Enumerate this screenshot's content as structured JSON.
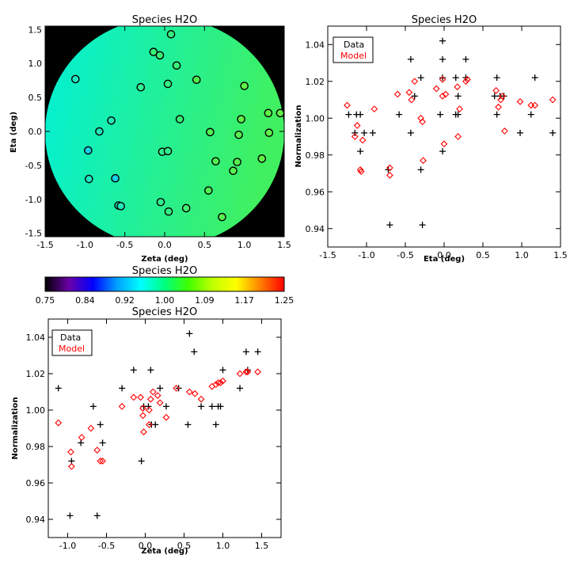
{
  "chart_data": [
    {
      "id": "map",
      "type": "heatmap",
      "title": "Species H2O",
      "xlabel": "Zeta (deg)",
      "ylabel": "Eta (deg)",
      "xlim": [
        -1.5,
        1.5
      ],
      "ylim": [
        -1.55,
        1.55
      ],
      "xticks": [
        "-1.5",
        "-1.0",
        "-0.5",
        "0.0",
        "0.5",
        "1.0",
        "1.5"
      ],
      "yticks": [
        "-1.5",
        "-1.0",
        "-0.5",
        "0.0",
        "0.5",
        "1.0",
        "1.5"
      ],
      "background_color": "#000000",
      "field_colors": {
        "left": "#00f0d8",
        "right": "#40f060"
      },
      "points": [
        {
          "x": 0.08,
          "y": 1.43,
          "c": "#33f080"
        },
        {
          "x": -0.14,
          "y": 1.17,
          "c": "#38f078"
        },
        {
          "x": -0.06,
          "y": 1.12,
          "c": "#38f078"
        },
        {
          "x": 0.15,
          "y": 0.97,
          "c": "#38f078"
        },
        {
          "x": -1.12,
          "y": 0.77,
          "c": "#20e8c0"
        },
        {
          "x": 0.4,
          "y": 0.76,
          "c": "#50f050"
        },
        {
          "x": 0.04,
          "y": 0.7,
          "c": "#33f080"
        },
        {
          "x": -0.3,
          "y": 0.65,
          "c": "#30f098"
        },
        {
          "x": 1.0,
          "y": 0.67,
          "c": "#60f048"
        },
        {
          "x": 1.3,
          "y": 0.27,
          "c": "#60f048"
        },
        {
          "x": 1.45,
          "y": 0.27,
          "c": "#60f048"
        },
        {
          "x": 0.96,
          "y": 0.18,
          "c": "#60f048"
        },
        {
          "x": -0.67,
          "y": 0.16,
          "c": "#20e8b8"
        },
        {
          "x": 0.19,
          "y": 0.18,
          "c": "#38f078"
        },
        {
          "x": -0.82,
          "y": 0.0,
          "c": "#20e8b8"
        },
        {
          "x": 0.57,
          "y": -0.01,
          "c": "#50f050"
        },
        {
          "x": 0.93,
          "y": -0.05,
          "c": "#58f050"
        },
        {
          "x": 1.31,
          "y": -0.02,
          "c": "#60f048"
        },
        {
          "x": -0.96,
          "y": -0.28,
          "c": "#18d0e8"
        },
        {
          "x": -0.03,
          "y": -0.3,
          "c": "#30f090"
        },
        {
          "x": 0.04,
          "y": -0.29,
          "c": "#30f090"
        },
        {
          "x": 0.64,
          "y": -0.44,
          "c": "#50f050"
        },
        {
          "x": 0.91,
          "y": -0.45,
          "c": "#58f050"
        },
        {
          "x": 1.22,
          "y": -0.4,
          "c": "#60f048"
        },
        {
          "x": 0.86,
          "y": -0.58,
          "c": "#58f050"
        },
        {
          "x": -0.95,
          "y": -0.7,
          "c": "#20e8c0"
        },
        {
          "x": -0.62,
          "y": -0.69,
          "c": "#18d0e8"
        },
        {
          "x": 0.55,
          "y": -0.87,
          "c": "#50f050"
        },
        {
          "x": -0.58,
          "y": -1.09,
          "c": "#20e8b8"
        },
        {
          "x": -0.55,
          "y": -1.1,
          "c": "#20e8b8"
        },
        {
          "x": -0.05,
          "y": -1.04,
          "c": "#30f090"
        },
        {
          "x": 0.27,
          "y": -1.13,
          "c": "#40f070"
        },
        {
          "x": 0.05,
          "y": -1.18,
          "c": "#33f080"
        },
        {
          "x": 0.72,
          "y": -1.26,
          "c": "#58f050"
        }
      ]
    },
    {
      "id": "colorbar",
      "type": "colorbar",
      "title": "Species H2O",
      "range": [
        0.75,
        1.25
      ],
      "ticks": [
        "0.75",
        "0.84",
        "0.92",
        "1.00",
        "1.09",
        "1.17",
        "1.25"
      ],
      "colors": [
        "#000000",
        "#6a00a8",
        "#0000ff",
        "#00a0ff",
        "#00ffff",
        "#00ff80",
        "#40ff00",
        "#c0ff00",
        "#ffff00",
        "#ff8000",
        "#ff0000"
      ]
    },
    {
      "id": "eta",
      "type": "scatter",
      "title": "Species H2O",
      "xlabel": "Eta (deg)",
      "ylabel": "Normalization",
      "xlim": [
        -1.5,
        1.5
      ],
      "ylim": [
        0.93,
        1.05
      ],
      "xticks": [
        "-1.5",
        "-1.0",
        "-0.5",
        "0.0",
        "0.5",
        "1.0",
        "1.5"
      ],
      "yticks": [
        "0.94",
        "0.96",
        "0.98",
        "1.00",
        "1.02",
        "1.04"
      ],
      "legend": [
        "Data",
        "Model"
      ],
      "legend_position": "top-left",
      "series": [
        {
          "name": "Data",
          "marker": "plus",
          "color": "#000000",
          "points": [
            [
              -1.23,
              1.002
            ],
            [
              -1.15,
              0.992
            ],
            [
              -1.13,
              1.002
            ],
            [
              -1.08,
              1.002
            ],
            [
              -1.08,
              0.982
            ],
            [
              -1.03,
              0.992
            ],
            [
              -0.92,
              0.992
            ],
            [
              -0.72,
              0.972
            ],
            [
              -0.7,
              0.942
            ],
            [
              -0.58,
              1.002
            ],
            [
              -0.43,
              1.032
            ],
            [
              -0.43,
              0.992
            ],
            [
              -0.38,
              1.012
            ],
            [
              -0.3,
              1.022
            ],
            [
              -0.3,
              0.972
            ],
            [
              -0.28,
              0.942
            ],
            [
              -0.05,
              1.002
            ],
            [
              -0.02,
              1.042
            ],
            [
              -0.02,
              1.032
            ],
            [
              -0.02,
              1.022
            ],
            [
              -0.02,
              0.982
            ],
            [
              0.15,
              1.022
            ],
            [
              0.15,
              1.002
            ],
            [
              0.18,
              1.012
            ],
            [
              0.18,
              1.002
            ],
            [
              0.28,
              1.032
            ],
            [
              0.28,
              1.022
            ],
            [
              0.65,
              1.012
            ],
            [
              0.68,
              1.022
            ],
            [
              0.68,
              1.002
            ],
            [
              0.72,
              1.012
            ],
            [
              0.77,
              1.012
            ],
            [
              0.98,
              0.992
            ],
            [
              1.12,
              1.002
            ],
            [
              1.17,
              1.022
            ],
            [
              1.4,
              0.992
            ]
          ]
        },
        {
          "name": "Model",
          "marker": "diamond",
          "color": "#ff0000",
          "points": [
            [
              -1.25,
              1.007
            ],
            [
              -1.15,
              0.99
            ],
            [
              -1.12,
              0.996
            ],
            [
              -1.08,
              0.972
            ],
            [
              -1.07,
              0.971
            ],
            [
              -1.05,
              0.988
            ],
            [
              -0.9,
              1.005
            ],
            [
              -0.7,
              0.969
            ],
            [
              -0.7,
              0.973
            ],
            [
              -0.6,
              1.013
            ],
            [
              -0.45,
              1.014
            ],
            [
              -0.42,
              1.01
            ],
            [
              -0.38,
              1.02
            ],
            [
              -0.3,
              1.0
            ],
            [
              -0.28,
              0.998
            ],
            [
              -0.27,
              0.977
            ],
            [
              -0.1,
              1.016
            ],
            [
              -0.02,
              1.021
            ],
            [
              -0.02,
              1.012
            ],
            [
              0.0,
              0.986
            ],
            [
              0.02,
              1.013
            ],
            [
              0.17,
              1.017
            ],
            [
              0.18,
              0.99
            ],
            [
              0.2,
              1.005
            ],
            [
              0.28,
              1.02
            ],
            [
              0.3,
              1.021
            ],
            [
              0.67,
              1.015
            ],
            [
              0.7,
              1.006
            ],
            [
              0.73,
              1.01
            ],
            [
              0.75,
              1.012
            ],
            [
              0.78,
              0.993
            ],
            [
              0.98,
              1.009
            ],
            [
              1.12,
              1.007
            ],
            [
              1.17,
              1.007
            ],
            [
              1.4,
              1.01
            ]
          ]
        }
      ]
    },
    {
      "id": "zeta",
      "type": "scatter",
      "title": "Species H2O",
      "xlabel": "Zeta (deg)",
      "ylabel": "Normalization",
      "xlim": [
        -1.25,
        1.75
      ],
      "ylim": [
        0.93,
        1.05
      ],
      "xticks": [
        "-1.0",
        "-0.5",
        "0.0",
        "0.5",
        "1.0",
        "1.5"
      ],
      "yticks": [
        "0.94",
        "0.96",
        "0.98",
        "1.00",
        "1.02",
        "1.04"
      ],
      "legend": [
        "Data",
        "Model"
      ],
      "legend_position": "top-left",
      "series": [
        {
          "name": "Data",
          "marker": "plus",
          "color": "#000000",
          "points": [
            [
              -1.12,
              1.012
            ],
            [
              -0.95,
              0.972
            ],
            [
              -0.97,
              0.942
            ],
            [
              -0.83,
              0.982
            ],
            [
              -0.67,
              1.002
            ],
            [
              -0.62,
              0.942
            ],
            [
              -0.58,
              0.992
            ],
            [
              -0.55,
              0.982
            ],
            [
              -0.3,
              1.012
            ],
            [
              -0.15,
              1.022
            ],
            [
              -0.05,
              0.972
            ],
            [
              -0.02,
              1.002
            ],
            [
              0.04,
              1.002
            ],
            [
              0.07,
              1.022
            ],
            [
              0.08,
              0.992
            ],
            [
              0.13,
              0.992
            ],
            [
              0.19,
              1.012
            ],
            [
              0.27,
              1.002
            ],
            [
              0.43,
              1.012
            ],
            [
              0.55,
              0.992
            ],
            [
              0.57,
              1.042
            ],
            [
              0.63,
              1.032
            ],
            [
              0.72,
              1.002
            ],
            [
              0.86,
              1.002
            ],
            [
              0.91,
              0.992
            ],
            [
              0.94,
              1.002
            ],
            [
              0.97,
              1.002
            ],
            [
              1.0,
              1.022
            ],
            [
              1.22,
              1.012
            ],
            [
              1.3,
              1.032
            ],
            [
              1.32,
              1.022
            ],
            [
              1.45,
              1.032
            ]
          ]
        },
        {
          "name": "Model",
          "marker": "diamond",
          "color": "#ff0000",
          "points": [
            [
              -1.12,
              0.993
            ],
            [
              -0.96,
              0.977
            ],
            [
              -0.95,
              0.969
            ],
            [
              -0.82,
              0.985
            ],
            [
              -0.7,
              0.99
            ],
            [
              -0.62,
              0.978
            ],
            [
              -0.58,
              0.972
            ],
            [
              -0.55,
              0.972
            ],
            [
              -0.3,
              1.002
            ],
            [
              -0.15,
              1.007
            ],
            [
              -0.06,
              1.007
            ],
            [
              -0.03,
              1.001
            ],
            [
              -0.03,
              0.997
            ],
            [
              -0.02,
              0.988
            ],
            [
              0.05,
              0.992
            ],
            [
              0.05,
              1.0
            ],
            [
              0.07,
              1.006
            ],
            [
              0.1,
              1.01
            ],
            [
              0.16,
              1.008
            ],
            [
              0.19,
              1.004
            ],
            [
              0.27,
              0.996
            ],
            [
              0.4,
              1.012
            ],
            [
              0.57,
              1.01
            ],
            [
              0.64,
              1.009
            ],
            [
              0.72,
              1.006
            ],
            [
              0.86,
              1.013
            ],
            [
              0.91,
              1.014
            ],
            [
              0.94,
              1.015
            ],
            [
              0.97,
              1.015
            ],
            [
              1.0,
              1.016
            ],
            [
              1.22,
              1.02
            ],
            [
              1.3,
              1.021
            ],
            [
              1.32,
              1.021
            ],
            [
              1.45,
              1.021
            ]
          ]
        }
      ]
    }
  ]
}
